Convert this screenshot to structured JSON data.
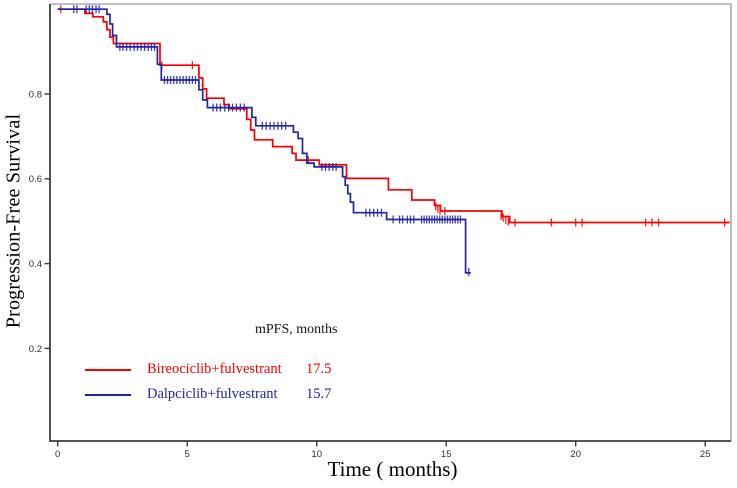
{
  "chart_data": {
    "type": "line",
    "subtype": "kaplan-meier-step-curve",
    "title": "",
    "xlabel": "Time ( months)",
    "ylabel": "Progression-Free Survival",
    "xlim": [
      -0.35,
      26.1
    ],
    "ylim": [
      0,
      1.03
    ],
    "xticks": [
      0,
      5,
      10,
      15,
      20,
      25
    ],
    "yticks": [
      0.2,
      0.4,
      0.6,
      0.8
    ],
    "grid": false,
    "legend_header": "mPFS, months",
    "legend_position": "inside-bottom-left",
    "axis_color": "#3c3c3c",
    "frame_color": "#aaaaaa",
    "tick_label_color": "#2e2e2e",
    "series": [
      {
        "name": "Bireociclib+fulvestrant",
        "median_pfs_months": "17.5",
        "color": "#f60000",
        "steps": [
          [
            0,
            1.0
          ],
          [
            1.05,
            0.99
          ],
          [
            1.36,
            0.982
          ],
          [
            1.76,
            0.97
          ],
          [
            1.9,
            0.952
          ],
          [
            2.02,
            0.934
          ],
          [
            2.15,
            0.919
          ],
          [
            3.95,
            0.868
          ],
          [
            5.45,
            0.838
          ],
          [
            5.6,
            0.812
          ],
          [
            5.75,
            0.79
          ],
          [
            6.42,
            0.775
          ],
          [
            6.62,
            0.765
          ],
          [
            7.3,
            0.74
          ],
          [
            7.45,
            0.715
          ],
          [
            7.6,
            0.692
          ],
          [
            8.3,
            0.676
          ],
          [
            9.05,
            0.66
          ],
          [
            9.2,
            0.644
          ],
          [
            10.1,
            0.633
          ],
          [
            11.15,
            0.601
          ],
          [
            12.77,
            0.574
          ],
          [
            13.67,
            0.55
          ],
          [
            14.55,
            0.537
          ],
          [
            14.78,
            0.524
          ],
          [
            17.15,
            0.511
          ],
          [
            17.45,
            0.497
          ],
          [
            25.95,
            0.497
          ]
        ],
        "censors": [
          [
            0.12,
            1.0
          ],
          [
            4.02,
            0.868
          ],
          [
            5.2,
            0.868
          ],
          [
            9.68,
            0.644
          ],
          [
            14.6,
            0.535
          ],
          [
            14.68,
            0.529
          ],
          [
            14.76,
            0.525
          ],
          [
            14.95,
            0.524
          ],
          [
            17.12,
            0.512
          ],
          [
            17.2,
            0.508
          ],
          [
            17.3,
            0.503
          ],
          [
            17.4,
            0.499
          ],
          [
            17.66,
            0.497
          ],
          [
            19.06,
            0.497
          ],
          [
            20.0,
            0.497
          ],
          [
            20.25,
            0.497
          ],
          [
            22.7,
            0.497
          ],
          [
            22.95,
            0.497
          ],
          [
            23.2,
            0.497
          ],
          [
            25.75,
            0.497
          ]
        ]
      },
      {
        "name": "Dalpciclib+fulvestrant",
        "median_pfs_months": "15.7",
        "color": "#2323a6",
        "steps": [
          [
            0,
            1.0
          ],
          [
            1.9,
            0.988
          ],
          [
            2.02,
            0.965
          ],
          [
            2.12,
            0.938
          ],
          [
            2.27,
            0.911
          ],
          [
            3.85,
            0.87
          ],
          [
            4.0,
            0.833
          ],
          [
            5.45,
            0.81
          ],
          [
            5.6,
            0.786
          ],
          [
            5.78,
            0.768
          ],
          [
            7.5,
            0.745
          ],
          [
            7.65,
            0.725
          ],
          [
            9.1,
            0.71
          ],
          [
            9.28,
            0.695
          ],
          [
            9.45,
            0.66
          ],
          [
            9.62,
            0.637
          ],
          [
            9.9,
            0.628
          ],
          [
            11.0,
            0.605
          ],
          [
            11.1,
            0.585
          ],
          [
            11.2,
            0.565
          ],
          [
            11.3,
            0.545
          ],
          [
            11.42,
            0.52
          ],
          [
            12.7,
            0.504
          ],
          [
            15.75,
            0.378
          ],
          [
            15.95,
            0.378
          ]
        ],
        "censors": [
          [
            0.62,
            1.0
          ],
          [
            0.74,
            1.0
          ],
          [
            1.1,
            1.0
          ],
          [
            1.22,
            1.0
          ],
          [
            1.34,
            1.0
          ],
          [
            1.48,
            1.0
          ],
          [
            1.6,
            1.0
          ],
          [
            2.4,
            0.911
          ],
          [
            2.52,
            0.911
          ],
          [
            2.66,
            0.911
          ],
          [
            2.8,
            0.911
          ],
          [
            2.95,
            0.911
          ],
          [
            3.08,
            0.911
          ],
          [
            3.22,
            0.911
          ],
          [
            3.36,
            0.911
          ],
          [
            3.5,
            0.911
          ],
          [
            3.62,
            0.911
          ],
          [
            3.74,
            0.911
          ],
          [
            4.12,
            0.833
          ],
          [
            4.24,
            0.833
          ],
          [
            4.36,
            0.833
          ],
          [
            4.48,
            0.833
          ],
          [
            4.6,
            0.833
          ],
          [
            4.72,
            0.833
          ],
          [
            4.84,
            0.833
          ],
          [
            4.96,
            0.833
          ],
          [
            5.08,
            0.833
          ],
          [
            5.2,
            0.833
          ],
          [
            5.32,
            0.833
          ],
          [
            6.0,
            0.768
          ],
          [
            6.14,
            0.768
          ],
          [
            6.28,
            0.768
          ],
          [
            6.45,
            0.768
          ],
          [
            6.6,
            0.768
          ],
          [
            6.75,
            0.768
          ],
          [
            6.9,
            0.768
          ],
          [
            7.05,
            0.768
          ],
          [
            7.2,
            0.768
          ],
          [
            7.9,
            0.725
          ],
          [
            8.05,
            0.725
          ],
          [
            8.2,
            0.725
          ],
          [
            8.35,
            0.725
          ],
          [
            8.5,
            0.725
          ],
          [
            8.65,
            0.725
          ],
          [
            8.8,
            0.725
          ],
          [
            10.2,
            0.628
          ],
          [
            10.34,
            0.628
          ],
          [
            10.48,
            0.628
          ],
          [
            10.62,
            0.628
          ],
          [
            10.75,
            0.628
          ],
          [
            11.9,
            0.52
          ],
          [
            12.05,
            0.52
          ],
          [
            12.2,
            0.52
          ],
          [
            12.35,
            0.52
          ],
          [
            12.5,
            0.52
          ],
          [
            12.95,
            0.504
          ],
          [
            13.2,
            0.504
          ],
          [
            13.32,
            0.504
          ],
          [
            13.5,
            0.504
          ],
          [
            13.62,
            0.504
          ],
          [
            13.75,
            0.504
          ],
          [
            14.05,
            0.504
          ],
          [
            14.15,
            0.504
          ],
          [
            14.25,
            0.504
          ],
          [
            14.35,
            0.504
          ],
          [
            14.45,
            0.504
          ],
          [
            14.55,
            0.504
          ],
          [
            14.65,
            0.504
          ],
          [
            14.75,
            0.504
          ],
          [
            14.85,
            0.504
          ],
          [
            14.95,
            0.504
          ],
          [
            15.05,
            0.504
          ],
          [
            15.15,
            0.504
          ],
          [
            15.25,
            0.504
          ],
          [
            15.35,
            0.504
          ],
          [
            15.45,
            0.504
          ],
          [
            15.55,
            0.504
          ],
          [
            15.87,
            0.38
          ]
        ]
      }
    ]
  }
}
